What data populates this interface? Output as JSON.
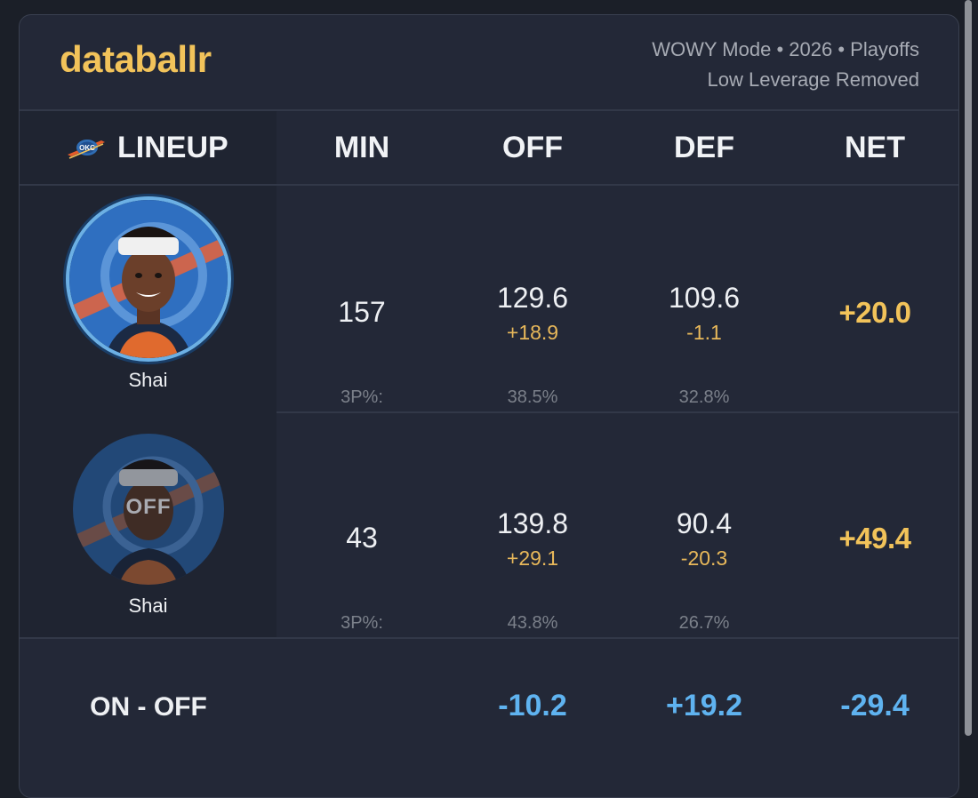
{
  "brand": "databallr",
  "mode_line1": "WOWY Mode • 2026 • Playoffs",
  "mode_line2": "Low Leverage Removed",
  "team_logo": "okc-thunder-logo",
  "columns": {
    "lineup": "LINEUP",
    "min": "MIN",
    "off": "OFF",
    "def": "DEF",
    "net": "NET"
  },
  "rows": [
    {
      "player": "Shai",
      "status": "on",
      "min": "157",
      "off": "129.6",
      "off_diff": "+18.9",
      "def": "109.6",
      "def_diff": "-1.1",
      "net": "+20.0",
      "three_pt_label": "3P%:",
      "off_3p": "38.5%",
      "def_3p": "32.8%"
    },
    {
      "player": "Shai",
      "status": "off",
      "overlay": "OFF",
      "min": "43",
      "off": "139.8",
      "off_diff": "+29.1",
      "def": "90.4",
      "def_diff": "-20.3",
      "net": "+49.4",
      "three_pt_label": "3P%:",
      "off_3p": "43.8%",
      "def_3p": "26.7%"
    }
  ],
  "summary": {
    "label": "ON - OFF",
    "off": "-10.2",
    "def": "+19.2",
    "net": "-29.4"
  },
  "colors": {
    "background": "#1b1f28",
    "card": "#232837",
    "brand": "#f2c35a",
    "accent_blue": "#5fb3f0",
    "diff": "#e8b85a"
  }
}
